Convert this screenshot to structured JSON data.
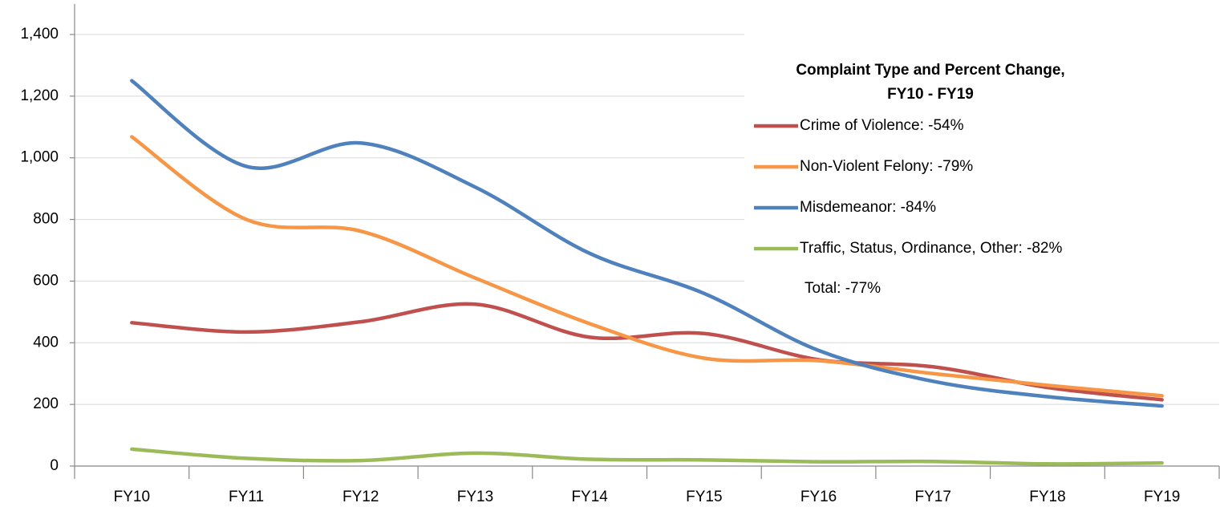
{
  "chart_data": {
    "type": "line",
    "legend_title": "Complaint Type and Percent Change, FY10 - FY19",
    "annotation": "Total:  -77%",
    "categories": [
      "FY10",
      "FY11",
      "FY12",
      "FY13",
      "FY14",
      "FY15",
      "FY16",
      "FY17",
      "FY18",
      "FY19"
    ],
    "series": [
      {
        "name": "Crime of Violence:  -54%",
        "color": "#c0504d",
        "values": [
          465,
          435,
          468,
          525,
          418,
          430,
          345,
          322,
          255,
          215
        ]
      },
      {
        "name": "Non-Violent Felony:  -79%",
        "color": "#f79646",
        "values": [
          1068,
          800,
          762,
          610,
          462,
          350,
          342,
          300,
          262,
          228
        ]
      },
      {
        "name": "Misdemeanor:  -84%",
        "color": "#4f81bd",
        "values": [
          1250,
          972,
          1048,
          905,
          690,
          560,
          375,
          275,
          225,
          195
        ]
      },
      {
        "name": "Traffic, Status, Ordinance, Other:  -82%",
        "color": "#9bbb59",
        "values": [
          55,
          25,
          18,
          42,
          22,
          20,
          14,
          15,
          7,
          10
        ]
      }
    ],
    "ylim": [
      0,
      1400
    ],
    "yticks": [
      0,
      {
        "value": 200,
        "label": "200"
      },
      400,
      600,
      800,
      {
        "value": 1000,
        "label": "1,000"
      },
      {
        "value": 1200,
        "label": "1,200"
      },
      {
        "value": 1400,
        "label": "1,400"
      }
    ],
    "grid": true
  }
}
